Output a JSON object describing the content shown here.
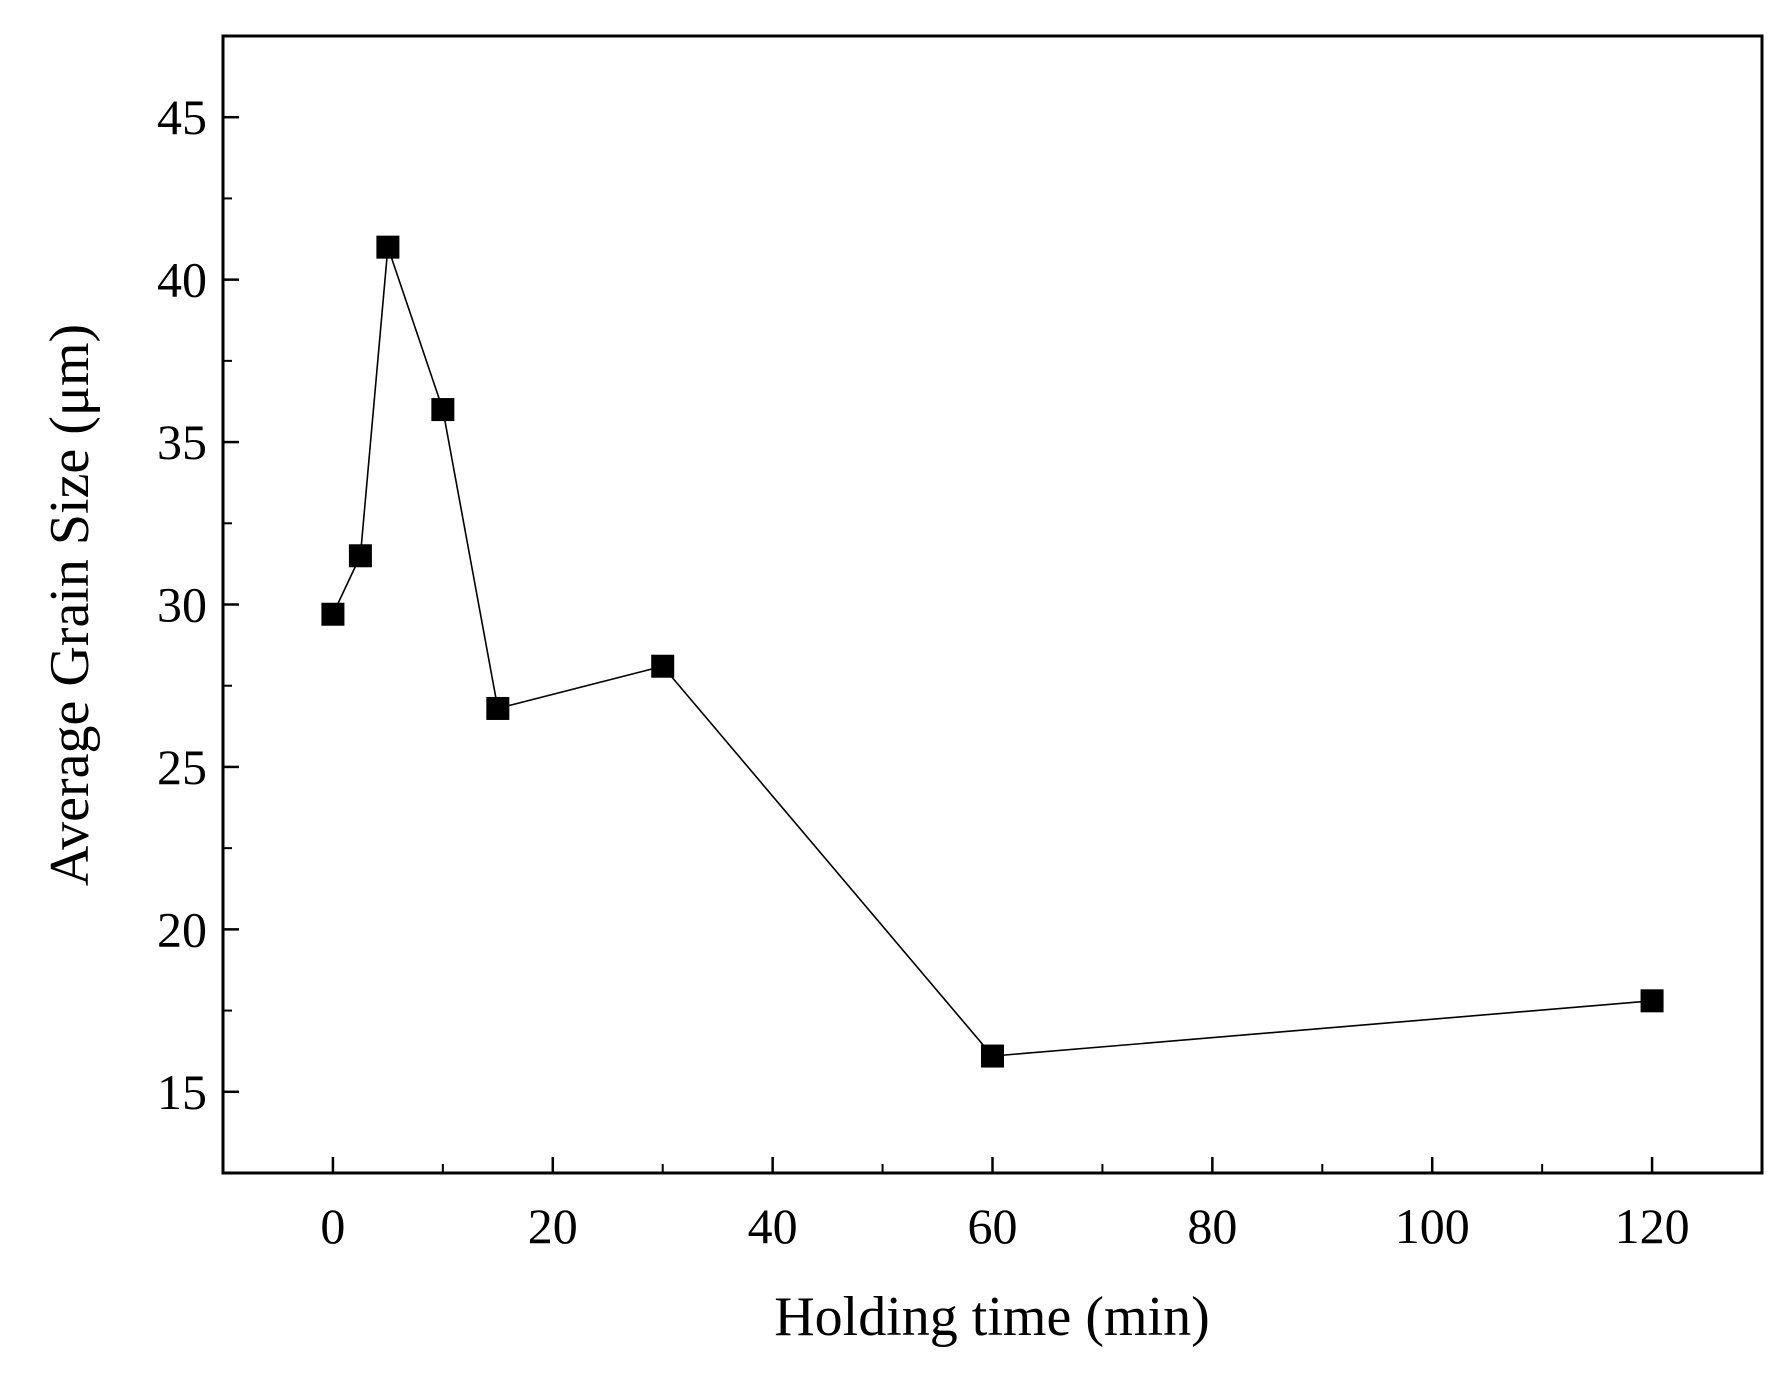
{
  "chart_data": {
    "type": "line",
    "xlabel": "Holding time (min)",
    "ylabel": "Average Grain Size (μm)",
    "xlim": [
      -10,
      130
    ],
    "ylim": [
      12.5,
      47.5
    ],
    "x_ticks": [
      0,
      20,
      40,
      60,
      80,
      100,
      120
    ],
    "x_minor_ticks": [
      10,
      30,
      50,
      70,
      90,
      110
    ],
    "y_ticks": [
      15,
      20,
      25,
      30,
      35,
      40,
      45
    ],
    "y_minor_ticks": [
      17.5,
      22.5,
      27.5,
      32.5,
      37.5,
      42.5
    ],
    "grid": false,
    "legend": "none",
    "series": [
      {
        "x": [
          0,
          2.5,
          5,
          10,
          15,
          30,
          60,
          120
        ],
        "y": [
          29.7,
          31.5,
          41.0,
          36.0,
          26.8,
          28.1,
          16.1,
          17.8
        ]
      }
    ],
    "colors": {
      "line": "#000000",
      "marker": "#000000"
    }
  }
}
